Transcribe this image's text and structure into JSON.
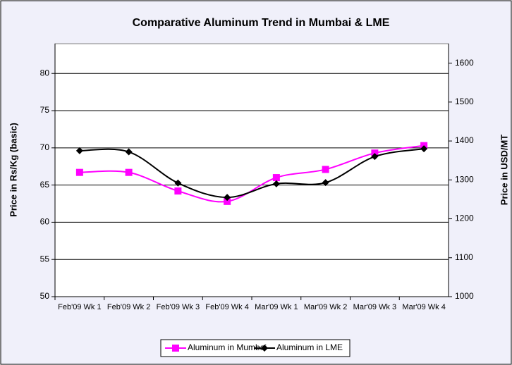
{
  "chart_data": {
    "type": "line",
    "title": "Comparative Aluminum Trend in Mumbai & LME",
    "y_label": "Price in Rs/Kg (basic)",
    "y2_label": "Price in USD/MT",
    "categories": [
      "Feb'09 Wk 1",
      "Feb'09 Wk 2",
      "Feb'09 Wk 3",
      "Feb'09 Wk 4",
      "Mar'09 Wk 1",
      "Mar'09 Wk 2",
      "Mar'09 Wk 3",
      "Mar'09 Wk 4"
    ],
    "series": [
      {
        "name": "Aluminum in Mumbai",
        "color": "#ff00ff",
        "marker": "square",
        "values": [
          66.7,
          66.7,
          64.2,
          62.8,
          66.0,
          67.1,
          69.3,
          70.3
        ]
      },
      {
        "name": "Aluminum in LME",
        "color": "#000000",
        "marker": "diamond",
        "axis": "y2",
        "values": [
          1375,
          1372,
          1292,
          1255,
          1290,
          1293,
          1360,
          1380
        ]
      }
    ],
    "ylim": [
      50,
      84
    ],
    "yticks": [
      50,
      55,
      60,
      65,
      70,
      75,
      80
    ],
    "y2lim": [
      1000,
      1650
    ],
    "y2ticks": [
      1000,
      1100,
      1200,
      1300,
      1400,
      1500,
      1600
    ],
    "grid": true,
    "legend": "bottom"
  }
}
